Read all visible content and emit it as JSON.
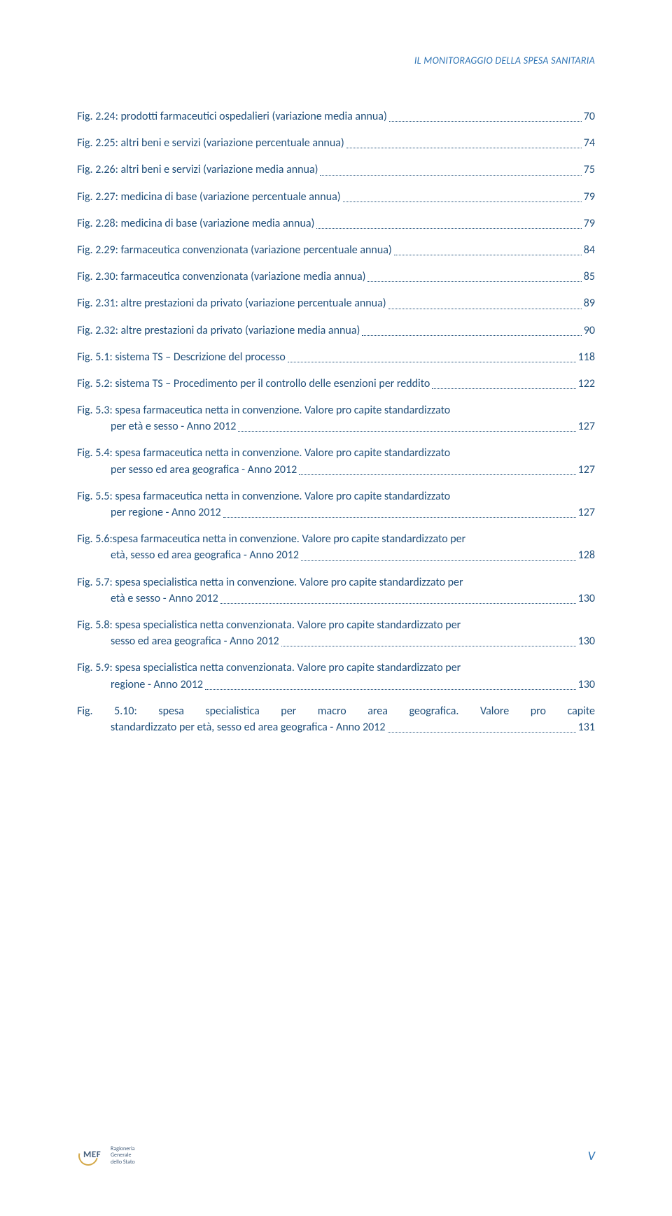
{
  "header_text": "IL MONITORAGGIO DELLA SPESA SANITARIA",
  "text_color": "#1f4e79",
  "header_color": "#2e74b5",
  "entries": [
    {
      "label": "Fig. 2.24: prodotti farmaceutici ospedalieri (variazione media annua)",
      "page": "70"
    },
    {
      "label": "Fig. 2.25: altri beni e servizi (variazione percentuale annua)",
      "page": "74"
    },
    {
      "label": "Fig. 2.26: altri beni e servizi (variazione media annua)",
      "page": "75"
    },
    {
      "label": "Fig. 2.27: medicina di base (variazione percentuale annua)",
      "page": "79"
    },
    {
      "label": "Fig. 2.28: medicina di base (variazione media annua)",
      "page": "79"
    },
    {
      "label": "Fig. 2.29: farmaceutica convenzionata (variazione percentuale annua)",
      "page": "84"
    },
    {
      "label": "Fig. 2.30: farmaceutica convenzionata (variazione media annua)",
      "page": "85"
    },
    {
      "label": "Fig. 2.31: altre prestazioni da privato (variazione percentuale annua)",
      "page": "89"
    },
    {
      "label": "Fig. 2.32: altre prestazioni da privato (variazione media annua)",
      "page": "90"
    },
    {
      "label": "Fig. 5.1: sistema TS – Descrizione del processo",
      "page": "118"
    },
    {
      "label": "Fig. 5.2: sistema TS – Procedimento per il controllo delle esenzioni per reddito",
      "page": "122"
    },
    {
      "label_l1": "Fig. 5.3: spesa farmaceutica netta in convenzione. Valore pro capite standardizzato",
      "label_l2": "per età e sesso - Anno 2012",
      "page": "127"
    },
    {
      "label_l1": "Fig. 5.4: spesa farmaceutica netta in convenzione. Valore pro capite standardizzato",
      "label_l2": "per sesso ed area geografica - Anno 2012",
      "page": "127"
    },
    {
      "label_l1": "Fig. 5.5: spesa farmaceutica netta in convenzione. Valore pro capite standardizzato",
      "label_l2": "per regione - Anno 2012",
      "page": "127"
    },
    {
      "label_l1": "Fig. 5.6:spesa farmaceutica netta in convenzione. Valore pro capite standardizzato per",
      "label_l2": "età, sesso ed area geografica - Anno 2012",
      "page": "128"
    },
    {
      "label_l1": "Fig. 5.7: spesa specialistica netta in convenzione. Valore pro capite standardizzato per",
      "label_l2": "età e sesso - Anno 2012",
      "page": "130"
    },
    {
      "label_l1": "Fig. 5.8: spesa specialistica netta convenzionata. Valore pro capite standardizzato per",
      "label_l2": "sesso ed area geografica - Anno 2012",
      "page": "130"
    },
    {
      "label_l1": "Fig. 5.9: spesa specialistica netta convenzionata. Valore pro capite standardizzato per",
      "label_l2": "regione - Anno 2012",
      "page": "130"
    },
    {
      "label_l1a": "Fig.",
      "label_l1b": "5.10:",
      "label_l1c": "spesa",
      "label_l1d": "specialistica",
      "label_l1e": "per",
      "label_l1f": "macro",
      "label_l1g": "area",
      "label_l1h": "geografica.",
      "label_l1i": "Valore",
      "label_l1j": "pro",
      "label_l1k": "capite",
      "label_l2": "standardizzato per età, sesso ed area geografica - Anno 2012",
      "page": "131",
      "justified": true
    }
  ],
  "footer": {
    "mef": "MEF",
    "label_line1": "Ragioneria",
    "label_line2": "Generale",
    "label_line3": "dello Stato",
    "page_roman": "V"
  }
}
